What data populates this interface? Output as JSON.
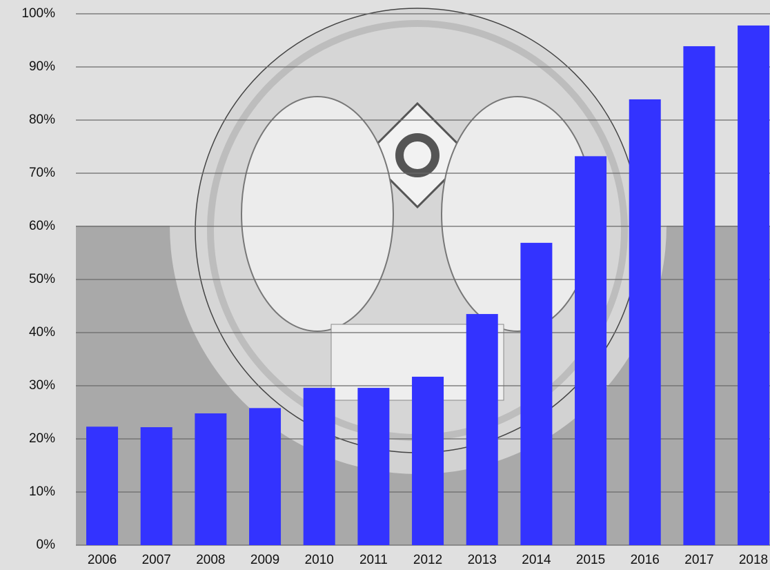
{
  "chart_data": {
    "type": "bar",
    "categories": [
      "2006",
      "2007",
      "2008",
      "2009",
      "2010",
      "2011",
      "2012",
      "2013",
      "2014",
      "2015",
      "2016",
      "2017",
      "2018"
    ],
    "values": [
      22.3,
      22.2,
      24.8,
      25.8,
      29.6,
      29.6,
      31.7,
      43.5,
      56.9,
      73.2,
      83.9,
      93.9,
      97.8
    ],
    "color": "#3333ff",
    "ylim": [
      0,
      100
    ],
    "yticks": [
      {
        "value": 0,
        "label": "0%"
      },
      {
        "value": 10,
        "label": "10%"
      },
      {
        "value": 20,
        "label": "20%"
      },
      {
        "value": 30,
        "label": "30%"
      },
      {
        "value": 40,
        "label": "40%"
      },
      {
        "value": 50,
        "label": "50%"
      },
      {
        "value": 60,
        "label": "60%"
      },
      {
        "value": 70,
        "label": "70%"
      },
      {
        "value": 80,
        "label": "80%"
      },
      {
        "value": 90,
        "label": "90%"
      },
      {
        "value": 100,
        "label": "100%"
      }
    ],
    "grid": true
  }
}
